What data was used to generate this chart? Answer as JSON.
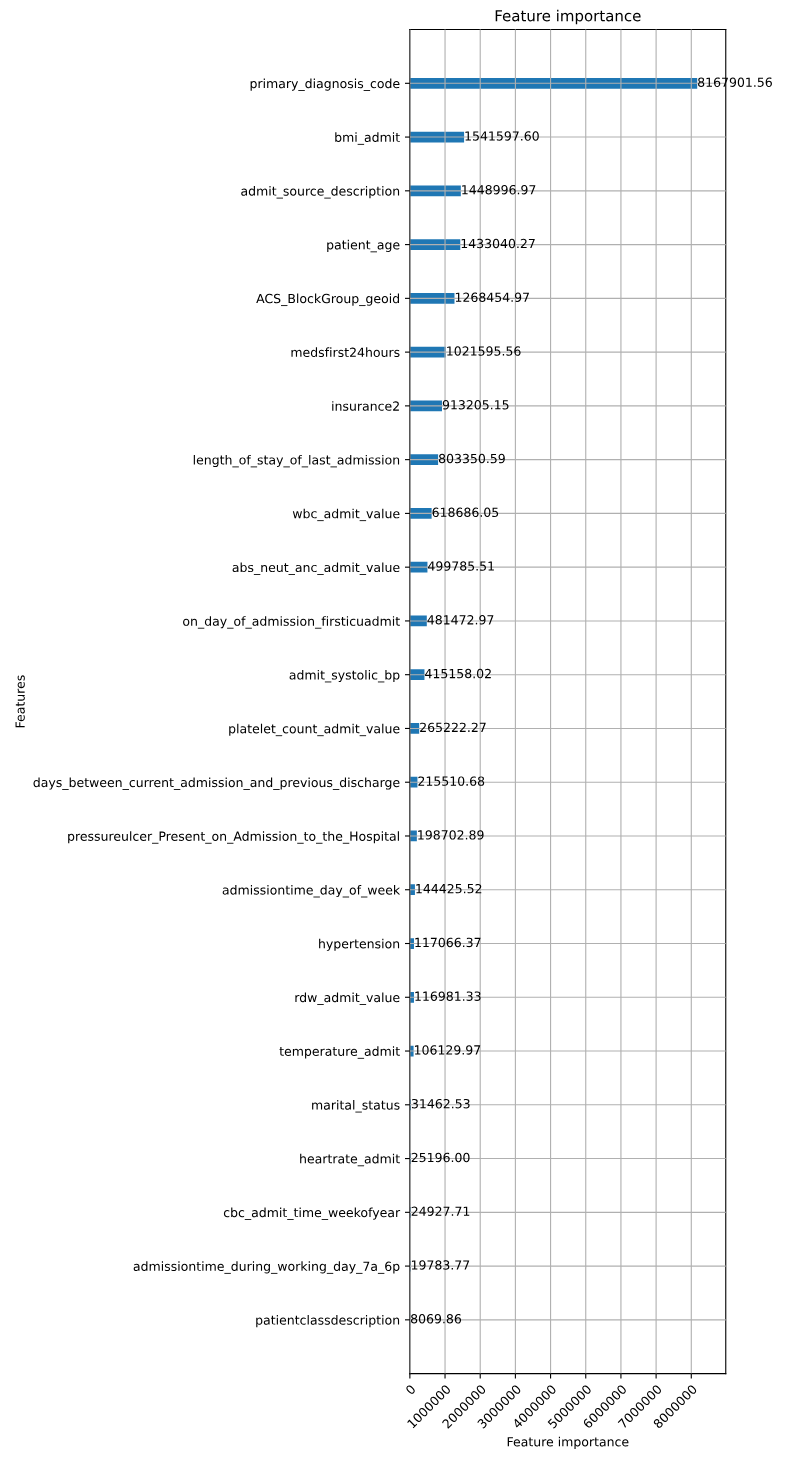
{
  "chart_data": {
    "type": "bar",
    "orientation": "horizontal",
    "title": "Feature importance",
    "xlabel": "Feature importance",
    "ylabel": "Features",
    "categories": [
      "primary_diagnosis_code",
      "bmi_admit",
      "admit_source_description",
      "patient_age",
      "ACS_BlockGroup_geoid",
      "medsfirst24hours",
      "insurance2",
      "length_of_stay_of_last_admission",
      "wbc_admit_value",
      "abs_neut_anc_admit_value",
      "on_day_of_admission_firsticuadmit",
      "admit_systolic_bp",
      "platelet_count_admit_value",
      "days_between_current_admission_and_previous_discharge",
      "pressureulcer_Present_on_Admission_to_the_Hospital",
      "admissiontime_day_of_week",
      "hypertension",
      "rdw_admit_value",
      "temperature_admit",
      "marital_status",
      "heartrate_admit",
      "cbc_admit_time_weekofyear",
      "admissiontime_during_working_day_7a_6p",
      "patientclassdescription"
    ],
    "values": [
      8167901.56,
      1541597.6,
      1448996.97,
      1433040.27,
      1268454.97,
      1021595.56,
      913205.15,
      803350.59,
      618686.05,
      499785.51,
      481472.97,
      415158.02,
      265222.27,
      215510.68,
      198702.89,
      144425.52,
      117066.37,
      116981.33,
      106129.97,
      31462.53,
      25196.0,
      24927.71,
      19783.77,
      8069.86
    ],
    "value_labels": [
      "8167901.56",
      "1541597.60",
      "1448996.97",
      "1433040.27",
      "1268454.97",
      "1021595.56",
      "913205.15",
      "803350.59",
      "618686.05",
      "499785.51",
      "481472.97",
      "415158.02",
      "265222.27",
      "215510.68",
      "198702.89",
      "144425.52",
      "117066.37",
      "116981.33",
      "106129.97",
      "31462.53",
      "25196.00",
      "24927.71",
      "19783.77",
      "8069.86"
    ],
    "color": "#1f77b4",
    "xlim": [
      0,
      8980000
    ],
    "xticks": [
      0,
      1000000,
      2000000,
      3000000,
      4000000,
      5000000,
      6000000,
      7000000,
      8000000
    ],
    "grid": true,
    "legend": false
  }
}
